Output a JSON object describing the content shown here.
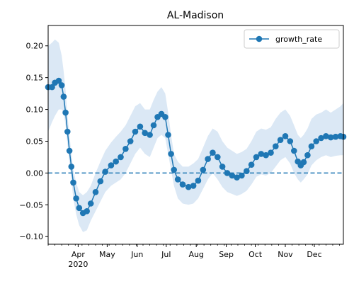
{
  "chart_data": {
    "type": "line",
    "title": "AL-Madison",
    "xlabel": "",
    "ylabel": "",
    "ylim": [
      -0.112,
      0.232
    ],
    "x_range": [
      "2020-03-01",
      "2020-12-31"
    ],
    "x_ticks": [
      {
        "date": "2020-04-01",
        "label": "Apr",
        "sublabel": "2020"
      },
      {
        "date": "2020-05-01",
        "label": "May"
      },
      {
        "date": "2020-06-01",
        "label": "Jun"
      },
      {
        "date": "2020-07-01",
        "label": "Jul"
      },
      {
        "date": "2020-08-01",
        "label": "Aug"
      },
      {
        "date": "2020-09-01",
        "label": "Sep"
      },
      {
        "date": "2020-10-01",
        "label": "Oct"
      },
      {
        "date": "2020-11-01",
        "label": "Nov"
      },
      {
        "date": "2020-12-01",
        "label": "Dec"
      }
    ],
    "y_ticks": [
      -0.1,
      -0.05,
      0.0,
      0.05,
      0.1,
      0.15,
      0.2
    ],
    "y_tick_labels": [
      "−0.10",
      "−0.05",
      "0.00",
      "0.05",
      "0.10",
      "0.15",
      "0.20"
    ],
    "legend": {
      "position": "top-right"
    },
    "reference_line": {
      "y": 0.0,
      "style": "dashed",
      "color": "#1f77b4"
    },
    "series": [
      {
        "name": "growth_rate",
        "color": "#1f77b4",
        "marker": "circle",
        "band_color": "#dbe8f5",
        "points": [
          [
            "2020-03-01",
            0.135,
            0.065,
            0.2
          ],
          [
            "2020-03-05",
            0.135,
            0.08,
            0.205
          ],
          [
            "2020-03-08",
            0.142,
            0.09,
            0.21
          ],
          [
            "2020-03-12",
            0.145,
            0.1,
            0.205
          ],
          [
            "2020-03-15",
            0.138,
            0.1,
            0.185
          ],
          [
            "2020-03-17",
            0.12,
            0.095,
            0.16
          ],
          [
            "2020-03-19",
            0.095,
            0.075,
            0.13
          ],
          [
            "2020-03-21",
            0.065,
            0.045,
            0.09
          ],
          [
            "2020-03-23",
            0.035,
            0.015,
            0.06
          ],
          [
            "2020-03-25",
            0.01,
            -0.01,
            0.03
          ],
          [
            "2020-03-27",
            -0.015,
            -0.04,
            0.005
          ],
          [
            "2020-03-30",
            -0.04,
            -0.065,
            -0.015
          ],
          [
            "2020-04-02",
            -0.055,
            -0.082,
            -0.03
          ],
          [
            "2020-04-06",
            -0.063,
            -0.093,
            -0.035
          ],
          [
            "2020-04-10",
            -0.06,
            -0.09,
            -0.03
          ],
          [
            "2020-04-14",
            -0.048,
            -0.075,
            -0.02
          ],
          [
            "2020-04-19",
            -0.03,
            -0.06,
            0.0
          ],
          [
            "2020-04-24",
            -0.013,
            -0.045,
            0.018
          ],
          [
            "2020-04-29",
            0.002,
            -0.03,
            0.035
          ],
          [
            "2020-05-05",
            0.012,
            -0.02,
            0.048
          ],
          [
            "2020-05-10",
            0.018,
            -0.015,
            0.057
          ],
          [
            "2020-05-15",
            0.025,
            -0.01,
            0.065
          ],
          [
            "2020-05-20",
            0.038,
            0.0,
            0.075
          ],
          [
            "2020-05-25",
            0.05,
            0.015,
            0.09
          ],
          [
            "2020-05-30",
            0.065,
            0.03,
            0.105
          ],
          [
            "2020-06-04",
            0.073,
            0.04,
            0.11
          ],
          [
            "2020-06-09",
            0.063,
            0.03,
            0.1
          ],
          [
            "2020-06-14",
            0.06,
            0.025,
            0.1
          ],
          [
            "2020-06-18",
            0.075,
            0.04,
            0.115
          ],
          [
            "2020-06-22",
            0.088,
            0.055,
            0.128
          ],
          [
            "2020-06-26",
            0.093,
            0.06,
            0.135
          ],
          [
            "2020-06-30",
            0.088,
            0.055,
            0.125
          ],
          [
            "2020-07-03",
            0.06,
            0.03,
            0.095
          ],
          [
            "2020-07-06",
            0.03,
            0.005,
            0.06
          ],
          [
            "2020-07-09",
            0.005,
            -0.02,
            0.03
          ],
          [
            "2020-07-13",
            -0.01,
            -0.04,
            0.018
          ],
          [
            "2020-07-18",
            -0.018,
            -0.048,
            0.01
          ],
          [
            "2020-07-24",
            -0.022,
            -0.05,
            0.01
          ],
          [
            "2020-07-29",
            -0.02,
            -0.048,
            0.015
          ],
          [
            "2020-08-03",
            -0.012,
            -0.04,
            0.022
          ],
          [
            "2020-08-08",
            0.005,
            -0.025,
            0.04
          ],
          [
            "2020-08-13",
            0.022,
            -0.01,
            0.058
          ],
          [
            "2020-08-18",
            0.032,
            0.0,
            0.07
          ],
          [
            "2020-08-23",
            0.025,
            -0.01,
            0.065
          ],
          [
            "2020-08-28",
            0.01,
            -0.022,
            0.05
          ],
          [
            "2020-09-02",
            0.0,
            -0.03,
            0.04
          ],
          [
            "2020-09-07",
            -0.004,
            -0.033,
            0.035
          ],
          [
            "2020-09-12",
            -0.007,
            -0.036,
            0.03
          ],
          [
            "2020-09-17",
            -0.004,
            -0.033,
            0.033
          ],
          [
            "2020-09-22",
            0.003,
            -0.028,
            0.038
          ],
          [
            "2020-09-27",
            0.013,
            -0.018,
            0.05
          ],
          [
            "2020-10-02",
            0.025,
            -0.006,
            0.065
          ],
          [
            "2020-10-07",
            0.03,
            -0.002,
            0.07
          ],
          [
            "2020-10-12",
            0.028,
            -0.004,
            0.068
          ],
          [
            "2020-10-17",
            0.032,
            0.0,
            0.072
          ],
          [
            "2020-10-22",
            0.042,
            0.01,
            0.085
          ],
          [
            "2020-10-27",
            0.052,
            0.02,
            0.095
          ],
          [
            "2020-11-01",
            0.058,
            0.025,
            0.1
          ],
          [
            "2020-11-06",
            0.05,
            0.015,
            0.09
          ],
          [
            "2020-11-10",
            0.035,
            0.0,
            0.075
          ],
          [
            "2020-11-14",
            0.018,
            -0.01,
            0.06
          ],
          [
            "2020-11-17",
            0.012,
            -0.015,
            0.055
          ],
          [
            "2020-11-20",
            0.017,
            -0.01,
            0.06
          ],
          [
            "2020-11-24",
            0.028,
            -0.002,
            0.07
          ],
          [
            "2020-11-28",
            0.042,
            0.012,
            0.085
          ],
          [
            "2020-12-03",
            0.05,
            0.02,
            0.092
          ],
          [
            "2020-12-08",
            0.055,
            0.025,
            0.095
          ],
          [
            "2020-12-13",
            0.058,
            0.028,
            0.1
          ],
          [
            "2020-12-18",
            0.056,
            0.025,
            0.095
          ],
          [
            "2020-12-23",
            0.057,
            0.027,
            0.1
          ],
          [
            "2020-12-28",
            0.058,
            0.028,
            0.105
          ],
          [
            "2020-12-31",
            0.057,
            0.028,
            0.11
          ]
        ]
      }
    ]
  }
}
